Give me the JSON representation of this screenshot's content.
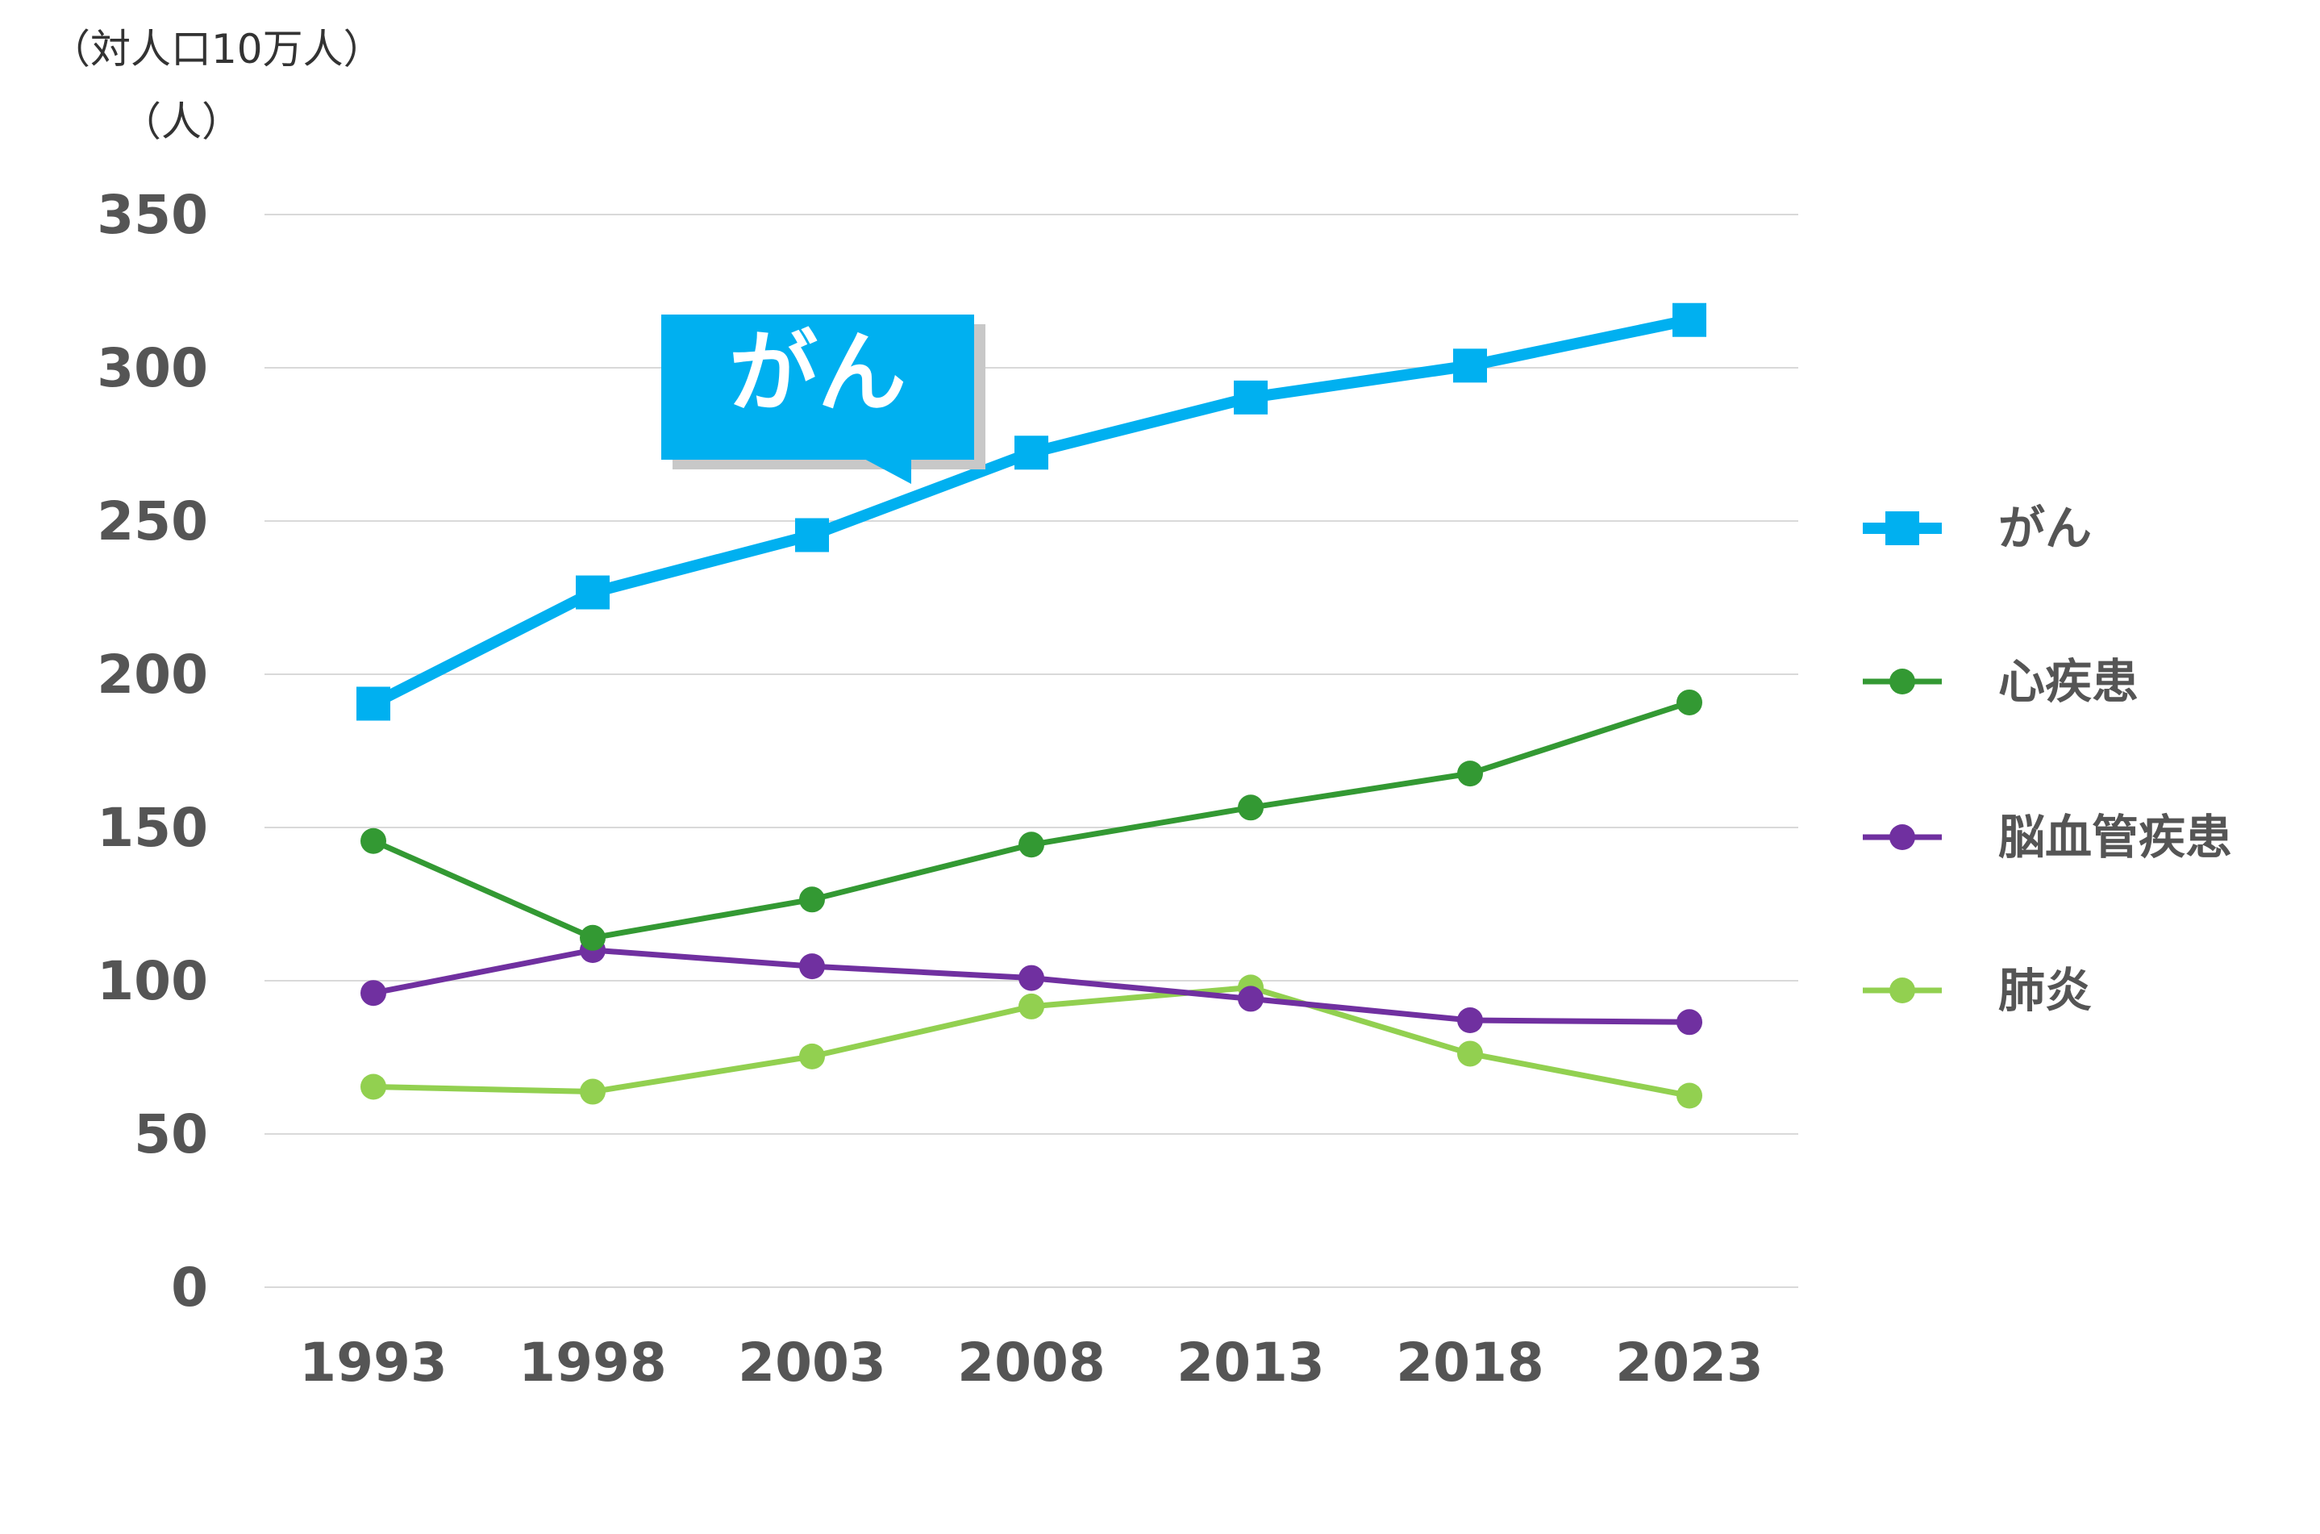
{
  "chart_data": {
    "type": "line",
    "unit_label_1": "（対人口10万人）",
    "unit_label_2": "（人）",
    "x": [
      "1993",
      "1998",
      "2003",
      "2008",
      "2013",
      "2018",
      "2023"
    ],
    "ylim": [
      0,
      350
    ],
    "yticks": [
      "0",
      "50",
      "100",
      "150",
      "200",
      "250",
      "300",
      "350"
    ],
    "grid": true,
    "legend_position": "right",
    "series": [
      {
        "name": "がん",
        "values": [
          190.4,
          226.7,
          245.4,
          272.3,
          290.3,
          300.7,
          315.6
        ],
        "color": "#00b0f0",
        "marker": "square"
      },
      {
        "name": "心疾患",
        "values": [
          145.6,
          114.0,
          126.5,
          144.4,
          156.5,
          167.6,
          190.8
        ],
        "color": "#339933",
        "marker": "circle"
      },
      {
        "name": "脳血管疾患",
        "values": [
          96.0,
          110.0,
          104.7,
          100.9,
          94.1,
          87.1,
          86.5
        ],
        "color": "#7030a0",
        "marker": "circle"
      },
      {
        "name": "肺炎",
        "values": [
          65.4,
          63.8,
          75.3,
          91.6,
          97.8,
          76.2,
          62.5
        ],
        "color": "#92d050",
        "marker": "circle"
      }
    ],
    "callout": "がん"
  }
}
